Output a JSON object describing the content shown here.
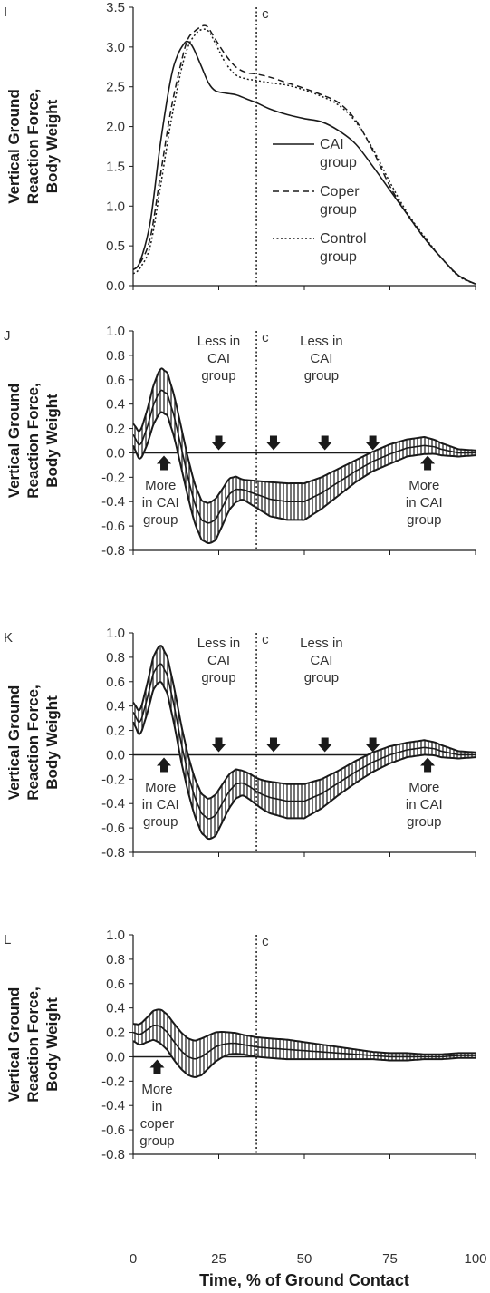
{
  "xlabel": "Time, % of Ground Contact",
  "colors": {
    "ink": "#1a1a1a",
    "tick": "#333333",
    "band": "#2a2a2a"
  },
  "chart_data": [
    {
      "panel": "I",
      "type": "line",
      "ylabel": [
        "Vertical Ground",
        "Reaction Force,",
        "Body Weight"
      ],
      "ylim": [
        0,
        3.5
      ],
      "yticks": [
        "0.0",
        "0.5",
        "1.0",
        "1.5",
        "2.0",
        "2.5",
        "3.0",
        "3.5"
      ],
      "xlim": [
        0,
        100
      ],
      "xticks": [
        "0",
        "25",
        "50",
        "75",
        "100"
      ],
      "vline": {
        "x": 36,
        "label": "c"
      },
      "legend": [
        {
          "label": [
            "CAI",
            "group"
          ],
          "style": "solid"
        },
        {
          "label": [
            "Coper",
            "group"
          ],
          "style": "dashed"
        },
        {
          "label": [
            "Control",
            "group"
          ],
          "style": "dotted"
        }
      ],
      "series": [
        {
          "name": "CAI group",
          "style": "solid",
          "x": [
            0,
            2,
            5,
            8,
            11,
            13,
            15,
            16,
            17,
            18,
            20,
            22,
            24,
            27,
            30,
            33,
            36,
            40,
            45,
            50,
            55,
            60,
            65,
            70,
            75,
            80,
            85,
            90,
            95,
            100
          ],
          "y": [
            0.2,
            0.3,
            0.8,
            1.8,
            2.6,
            2.9,
            3.05,
            3.07,
            3.03,
            2.95,
            2.75,
            2.55,
            2.45,
            2.42,
            2.4,
            2.35,
            2.3,
            2.22,
            2.15,
            2.1,
            2.06,
            1.95,
            1.78,
            1.5,
            1.2,
            0.9,
            0.6,
            0.35,
            0.13,
            0.02
          ]
        },
        {
          "name": "Coper group",
          "style": "dashed",
          "x": [
            0,
            2,
            5,
            8,
            11,
            14,
            16,
            18,
            20,
            21,
            22,
            24,
            27,
            30,
            33,
            36,
            40,
            45,
            50,
            55,
            60,
            65,
            70,
            75,
            80,
            85,
            90,
            95,
            100
          ],
          "y": [
            0.2,
            0.28,
            0.6,
            1.4,
            2.2,
            2.8,
            3.1,
            3.2,
            3.26,
            3.27,
            3.24,
            3.1,
            2.9,
            2.75,
            2.68,
            2.66,
            2.62,
            2.55,
            2.48,
            2.4,
            2.3,
            2.08,
            1.7,
            1.25,
            0.9,
            0.6,
            0.35,
            0.13,
            0.02
          ]
        },
        {
          "name": "Control group",
          "style": "dotted",
          "x": [
            0,
            2,
            5,
            8,
            11,
            14,
            16,
            18,
            20,
            22,
            24,
            27,
            30,
            33,
            36,
            40,
            45,
            50,
            55,
            60,
            65,
            70,
            75,
            80,
            85,
            90,
            95,
            100
          ],
          "y": [
            0.15,
            0.22,
            0.5,
            1.25,
            2.05,
            2.7,
            3.0,
            3.15,
            3.22,
            3.2,
            3.05,
            2.8,
            2.65,
            2.6,
            2.58,
            2.55,
            2.52,
            2.46,
            2.38,
            2.27,
            2.06,
            1.72,
            1.3,
            0.92,
            0.62,
            0.35,
            0.12,
            0.02
          ]
        }
      ]
    },
    {
      "panel": "J",
      "type": "area",
      "ylabel": [
        "Vertical Ground",
        "Reaction Force,",
        "Body Weight"
      ],
      "ylim": [
        -0.8,
        1.0
      ],
      "yticks": [
        "-0.8",
        "-0.6",
        "-0.4",
        "-0.2",
        "0.0",
        "0.2",
        "0.4",
        "0.6",
        "0.8",
        "1.0"
      ],
      "xlim": [
        0,
        100
      ],
      "xticks": [
        "0",
        "25",
        "50",
        "75",
        "100"
      ],
      "vline": {
        "x": 36,
        "label": "c"
      },
      "mean": {
        "x": [
          0,
          2,
          4,
          6,
          8,
          10,
          12,
          14,
          16,
          18,
          20,
          22,
          24,
          26,
          28,
          30,
          32,
          34,
          36,
          38,
          40,
          45,
          50,
          55,
          60,
          65,
          70,
          75,
          80,
          85,
          88,
          90,
          95,
          98,
          100
        ],
        "y": [
          0.15,
          0.05,
          0.2,
          0.4,
          0.52,
          0.48,
          0.3,
          0.05,
          -0.2,
          -0.42,
          -0.55,
          -0.58,
          -0.55,
          -0.45,
          -0.34,
          -0.3,
          -0.3,
          -0.32,
          -0.34,
          -0.36,
          -0.38,
          -0.4,
          -0.4,
          -0.33,
          -0.24,
          -0.15,
          -0.07,
          -0.01,
          0.04,
          0.06,
          0.05,
          0.03,
          0.0,
          0.0,
          0.0
        ]
      },
      "halfwidth": {
        "x": [
          0,
          4,
          8,
          12,
          16,
          20,
          24,
          28,
          32,
          36,
          40,
          45,
          50,
          55,
          60,
          65,
          70,
          75,
          80,
          85,
          90,
          95,
          100
        ],
        "y": [
          0.09,
          0.14,
          0.18,
          0.17,
          0.16,
          0.16,
          0.17,
          0.13,
          0.08,
          0.11,
          0.14,
          0.15,
          0.15,
          0.13,
          0.11,
          0.09,
          0.08,
          0.08,
          0.07,
          0.07,
          0.05,
          0.03,
          0.02
        ]
      },
      "annotations": [
        {
          "x": 8,
          "y": -0.3,
          "lines": [
            "More",
            "in CAI",
            "group"
          ]
        },
        {
          "x": 25,
          "y": 0.88,
          "lines": [
            "Less in",
            "CAI",
            "group"
          ]
        },
        {
          "x": 55,
          "y": 0.88,
          "lines": [
            "Less in",
            "CAI",
            "group"
          ]
        },
        {
          "x": 85,
          "y": -0.3,
          "lines": [
            "More",
            "in CAI",
            "group"
          ]
        }
      ],
      "arrows": [
        {
          "x": 9,
          "dir": "up"
        },
        {
          "x": 25,
          "dir": "down"
        },
        {
          "x": 41,
          "dir": "down"
        },
        {
          "x": 56,
          "dir": "down"
        },
        {
          "x": 70,
          "dir": "down"
        },
        {
          "x": 86,
          "dir": "up"
        }
      ]
    },
    {
      "panel": "K",
      "type": "area",
      "ylabel": [
        "Vertical Ground",
        "Reaction Force,",
        "Body Weight"
      ],
      "ylim": [
        -0.8,
        1.0
      ],
      "yticks": [
        "-0.8",
        "-0.6",
        "-0.4",
        "-0.2",
        "0.0",
        "0.2",
        "0.4",
        "0.6",
        "0.8",
        "1.0"
      ],
      "xlim": [
        0,
        100
      ],
      "xticks": [
        "0",
        "25",
        "50",
        "75",
        "100"
      ],
      "vline": {
        "x": 36,
        "label": "c"
      },
      "mean": {
        "x": [
          0,
          2,
          4,
          6,
          8,
          10,
          12,
          14,
          16,
          18,
          20,
          22,
          24,
          26,
          28,
          30,
          32,
          34,
          36,
          38,
          40,
          45,
          50,
          55,
          60,
          65,
          70,
          75,
          80,
          85,
          88,
          90,
          95,
          98,
          100
        ],
        "y": [
          0.35,
          0.25,
          0.45,
          0.68,
          0.76,
          0.65,
          0.4,
          0.1,
          -0.15,
          -0.35,
          -0.48,
          -0.53,
          -0.5,
          -0.4,
          -0.3,
          -0.24,
          -0.23,
          -0.26,
          -0.3,
          -0.33,
          -0.35,
          -0.38,
          -0.38,
          -0.32,
          -0.23,
          -0.14,
          -0.06,
          0.0,
          0.04,
          0.06,
          0.05,
          0.03,
          0.0,
          0.0,
          0.0
        ]
      },
      "halfwidth": {
        "x": [
          0,
          4,
          8,
          12,
          16,
          20,
          24,
          28,
          32,
          36,
          40,
          45,
          50,
          55,
          60,
          65,
          70,
          75,
          80,
          85,
          90,
          95,
          100
        ],
        "y": [
          0.08,
          0.12,
          0.15,
          0.15,
          0.15,
          0.16,
          0.17,
          0.14,
          0.1,
          0.11,
          0.13,
          0.14,
          0.14,
          0.12,
          0.1,
          0.09,
          0.08,
          0.07,
          0.06,
          0.06,
          0.05,
          0.03,
          0.02
        ]
      },
      "annotations": [
        {
          "x": 8,
          "y": -0.3,
          "lines": [
            "More",
            "in CAI",
            "group"
          ]
        },
        {
          "x": 25,
          "y": 0.88,
          "lines": [
            "Less in",
            "CAI",
            "group"
          ]
        },
        {
          "x": 55,
          "y": 0.88,
          "lines": [
            "Less in",
            "CAI",
            "group"
          ]
        },
        {
          "x": 85,
          "y": -0.3,
          "lines": [
            "More",
            "in CAI",
            "group"
          ]
        }
      ],
      "arrows": [
        {
          "x": 9,
          "dir": "up"
        },
        {
          "x": 25,
          "dir": "down"
        },
        {
          "x": 41,
          "dir": "down"
        },
        {
          "x": 56,
          "dir": "down"
        },
        {
          "x": 70,
          "dir": "down"
        },
        {
          "x": 86,
          "dir": "up"
        }
      ]
    },
    {
      "panel": "L",
      "type": "area",
      "ylabel": [
        "Vertical Ground",
        "Reaction Force,",
        "Body Weight"
      ],
      "ylim": [
        -0.8,
        1.0
      ],
      "yticks": [
        "-0.8",
        "-0.6",
        "-0.4",
        "-0.2",
        "0.0",
        "0.2",
        "0.4",
        "0.6",
        "0.8",
        "1.0"
      ],
      "xlim": [
        0,
        100
      ],
      "xticks": [
        "0",
        "25",
        "50",
        "75",
        "100"
      ],
      "vline": {
        "x": 36,
        "label": "c"
      },
      "mean": {
        "x": [
          0,
          2,
          4,
          6,
          8,
          10,
          12,
          14,
          16,
          18,
          20,
          22,
          24,
          26,
          28,
          30,
          32,
          34,
          36,
          40,
          45,
          50,
          55,
          60,
          65,
          70,
          75,
          80,
          85,
          90,
          95,
          100
        ],
        "y": [
          0.2,
          0.18,
          0.22,
          0.26,
          0.25,
          0.2,
          0.12,
          0.05,
          0.0,
          -0.02,
          0.0,
          0.04,
          0.08,
          0.1,
          0.11,
          0.11,
          0.1,
          0.09,
          0.08,
          0.07,
          0.06,
          0.05,
          0.04,
          0.03,
          0.02,
          0.01,
          0.0,
          0.0,
          0.0,
          0.0,
          0.01,
          0.01
        ]
      },
      "halfwidth": {
        "x": [
          0,
          4,
          8,
          12,
          16,
          20,
          24,
          28,
          32,
          36,
          40,
          45,
          50,
          55,
          60,
          65,
          70,
          75,
          80,
          85,
          90,
          95,
          100
        ],
        "y": [
          0.07,
          0.1,
          0.14,
          0.15,
          0.15,
          0.15,
          0.12,
          0.09,
          0.08,
          0.08,
          0.08,
          0.08,
          0.07,
          0.06,
          0.05,
          0.04,
          0.03,
          0.03,
          0.03,
          0.02,
          0.02,
          0.02,
          0.02
        ]
      },
      "annotations": [
        {
          "x": 7,
          "y": -0.3,
          "lines": [
            "More",
            "in",
            "coper",
            "group"
          ]
        }
      ],
      "arrows": [
        {
          "x": 7,
          "dir": "up"
        }
      ]
    }
  ]
}
